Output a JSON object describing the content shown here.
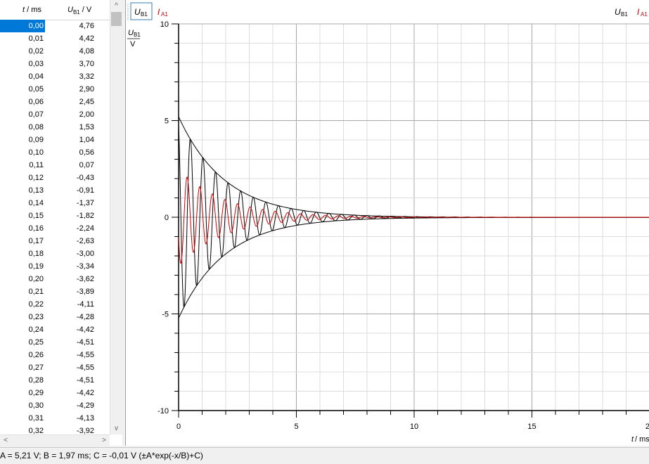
{
  "table": {
    "col_t_name": "t",
    "col_t_unit": " / ms",
    "col_u_name": "U",
    "col_u_sub": "B1",
    "col_u_unit": " / V",
    "selected_row": 0,
    "rows": [
      [
        "0,00",
        "4,76"
      ],
      [
        "0,01",
        "4,42"
      ],
      [
        "0,02",
        "4,08"
      ],
      [
        "0,03",
        "3,70"
      ],
      [
        "0,04",
        "3,32"
      ],
      [
        "0,05",
        "2,90"
      ],
      [
        "0,06",
        "2,45"
      ],
      [
        "0,07",
        "2,00"
      ],
      [
        "0,08",
        "1,53"
      ],
      [
        "0,09",
        "1,04"
      ],
      [
        "0,10",
        "0,56"
      ],
      [
        "0,11",
        "0,07"
      ],
      [
        "0,12",
        "-0,43"
      ],
      [
        "0,13",
        "-0,91"
      ],
      [
        "0,14",
        "-1,37"
      ],
      [
        "0,15",
        "-1,82"
      ],
      [
        "0,16",
        "-2,24"
      ],
      [
        "0,17",
        "-2,63"
      ],
      [
        "0,18",
        "-3,00"
      ],
      [
        "0,19",
        "-3,34"
      ],
      [
        "0,20",
        "-3,62"
      ],
      [
        "0,21",
        "-3,89"
      ],
      [
        "0,22",
        "-4,11"
      ],
      [
        "0,23",
        "-4,28"
      ],
      [
        "0,24",
        "-4,42"
      ],
      [
        "0,25",
        "-4,51"
      ],
      [
        "0,26",
        "-4,55"
      ],
      [
        "0,27",
        "-4,55"
      ],
      [
        "0,28",
        "-4,51"
      ],
      [
        "0,29",
        "-4,42"
      ],
      [
        "0,30",
        "-4,29"
      ],
      [
        "0,31",
        "-4,13"
      ],
      [
        "0,32",
        "-3,92"
      ]
    ],
    "scroll_up": "^",
    "scroll_down": "v",
    "scroll_left": "<",
    "scroll_right": ">"
  },
  "chart_toolbar": {
    "btn_u_name": "U",
    "btn_u_sub": "B1",
    "btn_i_name": "I",
    "btn_i_sub": "A1",
    "right_u_name": "U",
    "right_u_sub": "B1",
    "right_i_name": "I",
    "right_i_sub": "A1"
  },
  "chart_data": {
    "type": "line",
    "xlabel_name": "t",
    "xlabel_unit": " / ms",
    "ylabel_name": "U",
    "ylabel_sub": "B1",
    "ylabel_unit": "V",
    "xlim": [
      0,
      20
    ],
    "ylim": [
      -10,
      10
    ],
    "x_ticks": [
      0,
      5,
      10,
      15,
      20
    ],
    "x_tick_labels": [
      "0",
      "5",
      "10",
      "15",
      "20"
    ],
    "y_ticks": [
      -10,
      -5,
      0,
      5,
      10
    ],
    "y_tick_labels": [
      "-10",
      "-5",
      "0",
      "5",
      "10"
    ],
    "grid": true,
    "series": [
      {
        "name": "U",
        "color": "#000000",
        "amplitude": 5.21,
        "decay_ms": 1.97,
        "period_ms": 0.535,
        "phase": 0.42
      },
      {
        "name": "I",
        "color": "#cc0000",
        "amplitude": 2.5,
        "decay_ms": 1.97,
        "period_ms": 0.535,
        "phase": 2.0
      },
      {
        "name": "envelope",
        "color": "#000000",
        "A": 5.21,
        "B": 1.97,
        "C": -0.01
      }
    ]
  },
  "status": {
    "text": "A = 5,21 V;  B = 1,97 ms;  C = -0,01 V  (±A*exp(-x/B)+C)"
  },
  "colors": {
    "selection": "#0078d7",
    "current_red": "#cc0000"
  }
}
